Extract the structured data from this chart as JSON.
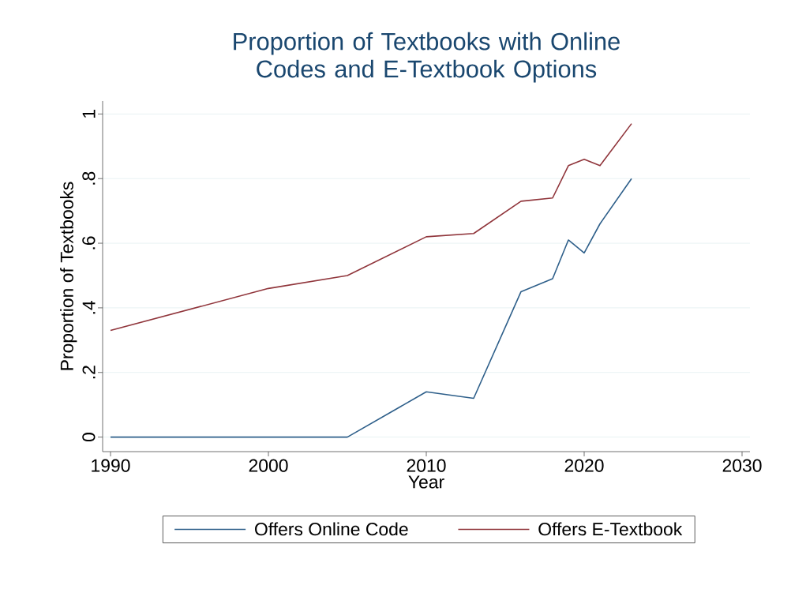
{
  "chart_data": {
    "type": "line",
    "title": "Proportion of Textbooks with Online Codes and E-Textbook Options",
    "xlabel": "Year",
    "ylabel": "Proportion of Textbooks",
    "x": [
      1990,
      2000,
      2005,
      2010,
      2013,
      2016,
      2018,
      2019,
      2020,
      2021,
      2023
    ],
    "series": [
      {
        "name": "Offers Online Code",
        "color": "#2e5f8a",
        "values": [
          0,
          0,
          0,
          0.14,
          0.12,
          0.45,
          0.49,
          0.61,
          0.57,
          0.66,
          0.8
        ]
      },
      {
        "name": "Offers E-Textbook",
        "color": "#90353b",
        "values": [
          0.33,
          0.46,
          0.5,
          0.62,
          0.63,
          0.73,
          0.74,
          0.84,
          0.86,
          0.84,
          0.97
        ]
      }
    ],
    "xlim": [
      1989.5,
      2030.5
    ],
    "ylim": [
      -0.045,
      1.04
    ],
    "xticks": [
      1990,
      2000,
      2010,
      2020,
      2030
    ],
    "yticks": [
      {
        "value": 0,
        "label": "0"
      },
      {
        "value": 0.2,
        "label": ".2"
      },
      {
        "value": 0.4,
        "label": ".4"
      },
      {
        "value": 0.6,
        "label": ".6"
      },
      {
        "value": 0.8,
        "label": ".8"
      },
      {
        "value": 1,
        "label": "1"
      }
    ],
    "grid": "y",
    "legend": "bottom",
    "marker": "none",
    "line_style": "solid"
  }
}
